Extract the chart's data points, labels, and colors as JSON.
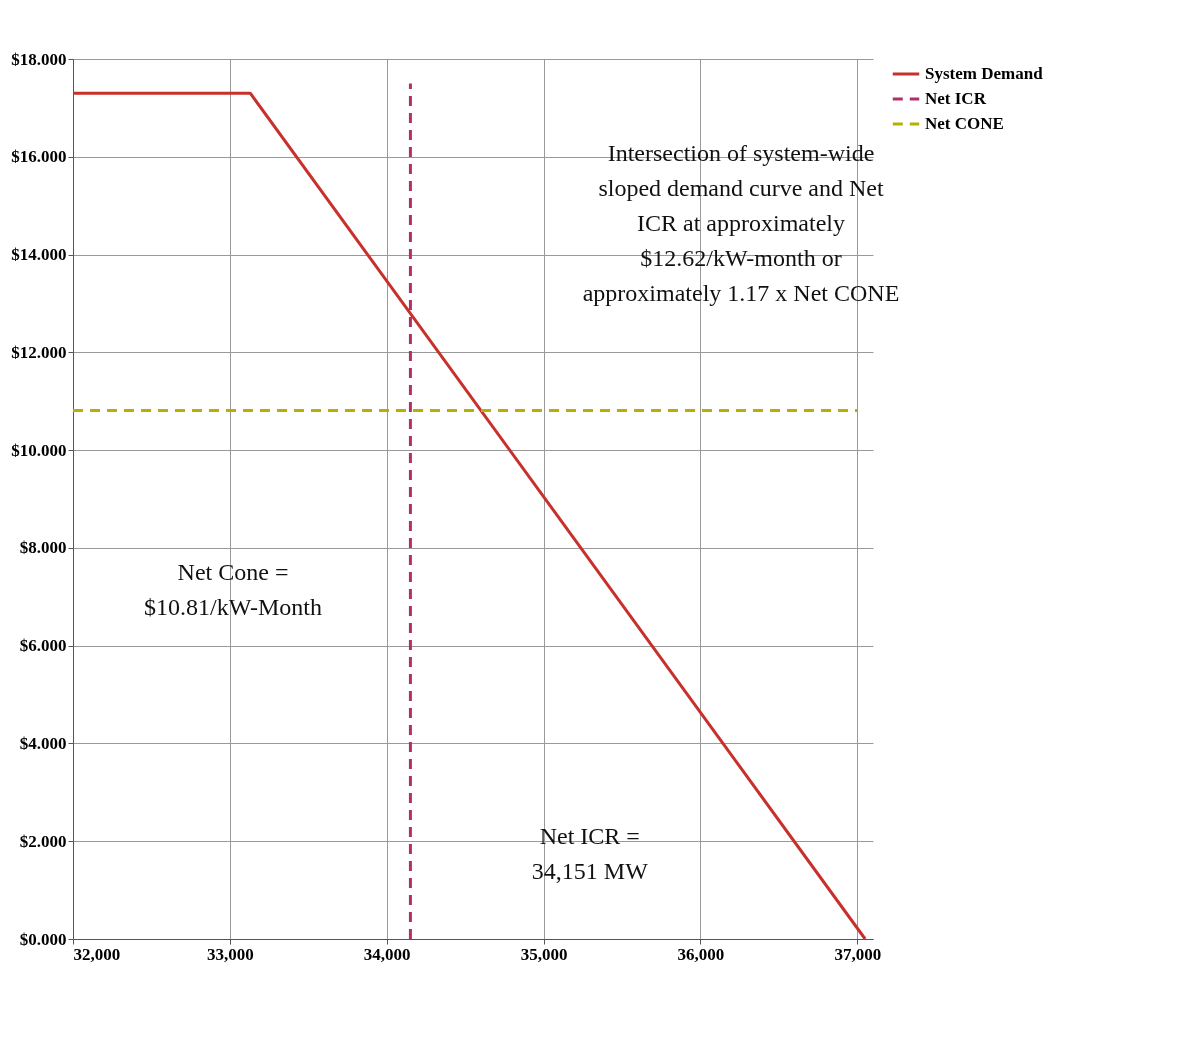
{
  "chart_data": {
    "type": "line",
    "xlim": [
      32000,
      37100
    ],
    "xticks": [
      {
        "value": 32000,
        "label": "32,000"
      },
      {
        "value": 33000,
        "label": "33,000"
      },
      {
        "value": 34000,
        "label": "34,000"
      },
      {
        "value": 35000,
        "label": "35,000"
      },
      {
        "value": 36000,
        "label": "36,000"
      },
      {
        "value": 37000,
        "label": "37,000"
      }
    ],
    "ylim": [
      0,
      18
    ],
    "yticks": [
      {
        "value": 0,
        "label": "$0.000"
      },
      {
        "value": 2,
        "label": "$2.000"
      },
      {
        "value": 4,
        "label": "$4.000"
      },
      {
        "value": 6,
        "label": "$6.000"
      },
      {
        "value": 8,
        "label": "$8.000"
      },
      {
        "value": 10,
        "label": "$10.000"
      },
      {
        "value": 12,
        "label": "$12.000"
      },
      {
        "value": 14,
        "label": "$14.000"
      },
      {
        "value": 16,
        "label": "$16.000"
      },
      {
        "value": 18,
        "label": "$18.000"
      }
    ],
    "series": [
      {
        "name": "System Demand",
        "color": "#c8302c",
        "line_style": "solid",
        "x": [
          32000,
          33130,
          37050
        ],
        "values": [
          17.3,
          17.3,
          0
        ]
      },
      {
        "name": "Net ICR",
        "color": "#b0306a",
        "line_style": "dashed",
        "x": [
          34151,
          34151
        ],
        "values": [
          0,
          17.5
        ]
      },
      {
        "name": "Net CONE",
        "color": "#b8b000",
        "line_style": "dashed",
        "x": [
          32000,
          37000
        ],
        "values": [
          10.81,
          10.81
        ]
      }
    ],
    "annotations": [
      "Intersection of system-wide sloped demand curve and Net ICR at approximately $12.62/kW-month or approximately 1.17 x Net CONE",
      "Net Cone = $10.81/kW-Month",
      "Net ICR = 34,151 MW"
    ],
    "grid": true,
    "legend": "right",
    "marker": "none"
  }
}
